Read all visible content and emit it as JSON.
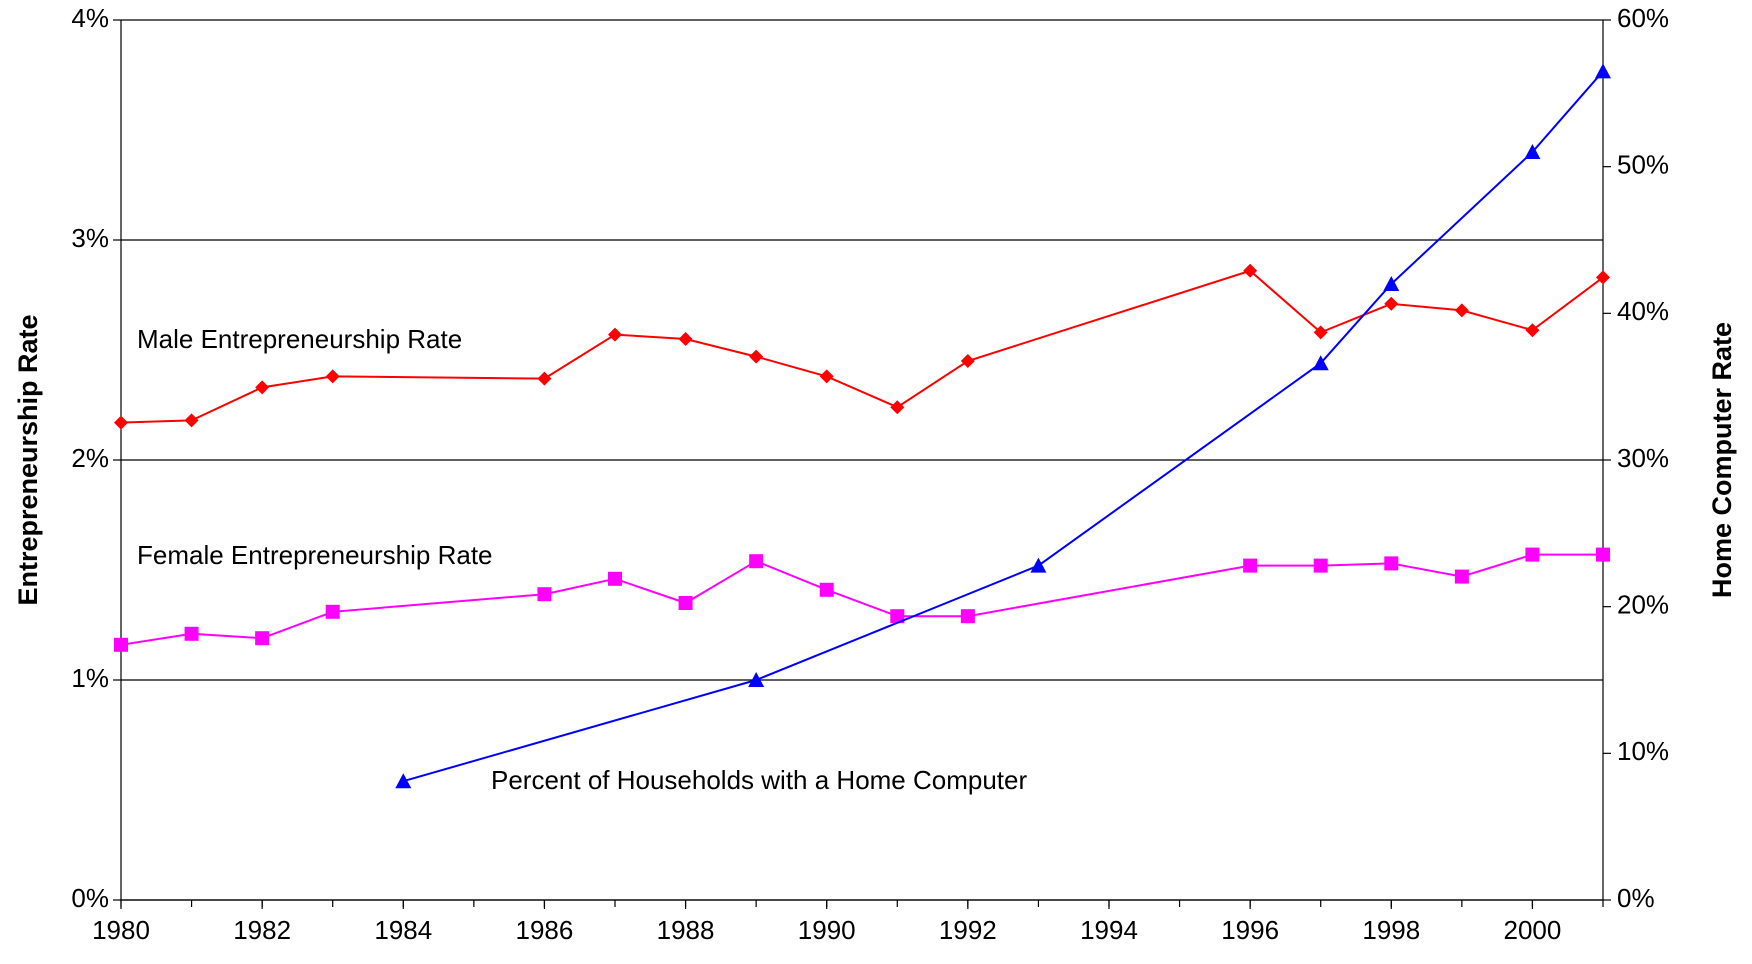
{
  "chart_data": {
    "type": "line",
    "y_label": "Entrepreneurship Rate",
    "y2_label": "Home Computer Rate",
    "xlim": [
      1980,
      2001
    ],
    "xticks": [
      1980,
      1982,
      1984,
      1986,
      1988,
      1990,
      1992,
      1994,
      1996,
      1998,
      2000
    ],
    "ylim": [
      0,
      4
    ],
    "yticks": [
      {
        "value": 0,
        "label": "0%"
      },
      {
        "value": 1,
        "label": "1%"
      },
      {
        "value": 2,
        "label": "2%"
      },
      {
        "value": 3,
        "label": "3%"
      },
      {
        "value": 4,
        "label": "4%"
      }
    ],
    "y2lim": [
      0,
      60
    ],
    "y2ticks": [
      {
        "value": 0,
        "label": "0%"
      },
      {
        "value": 10,
        "label": "10%"
      },
      {
        "value": 20,
        "label": "20%"
      },
      {
        "value": 30,
        "label": "30%"
      },
      {
        "value": 40,
        "label": "40%"
      },
      {
        "value": 50,
        "label": "50%"
      },
      {
        "value": 60,
        "label": "60%"
      }
    ],
    "grid": true,
    "series": [
      {
        "name": "Male Entrepreneurship Rate",
        "color": "#ff0000",
        "marker": "diamond",
        "x": [
          1980,
          1981,
          1982,
          1983,
          1986,
          1987,
          1988,
          1989,
          1990,
          1991,
          1992,
          1996,
          1997,
          1998,
          1999,
          2000,
          2001
        ],
        "values": [
          2.17,
          2.18,
          2.33,
          2.38,
          2.37,
          2.57,
          2.55,
          2.47,
          2.38,
          2.24,
          2.45,
          2.86,
          2.58,
          2.71,
          2.68,
          2.59,
          2.83
        ]
      },
      {
        "name": "Female Entrepreneurship Rate",
        "color": "#ff00ff",
        "marker": "square",
        "x": [
          1980,
          1981,
          1982,
          1983,
          1986,
          1987,
          1988,
          1989,
          1990,
          1991,
          1992,
          1996,
          1997,
          1998,
          1999,
          2000,
          2001
        ],
        "values": [
          1.16,
          1.21,
          1.19,
          1.31,
          1.39,
          1.46,
          1.35,
          1.54,
          1.41,
          1.29,
          1.29,
          1.52,
          1.52,
          1.53,
          1.47,
          1.57,
          1.57
        ]
      },
      {
        "name": "Percent of Households with a Home Computer",
        "color": "#0000ff",
        "marker": "triangle",
        "axis": "y2",
        "x": [
          1984,
          1989,
          1993,
          1997,
          1998,
          2000,
          2001
        ],
        "values": [
          8.1,
          15.0,
          22.8,
          36.6,
          42.0,
          51.0,
          56.5
        ]
      }
    ]
  }
}
